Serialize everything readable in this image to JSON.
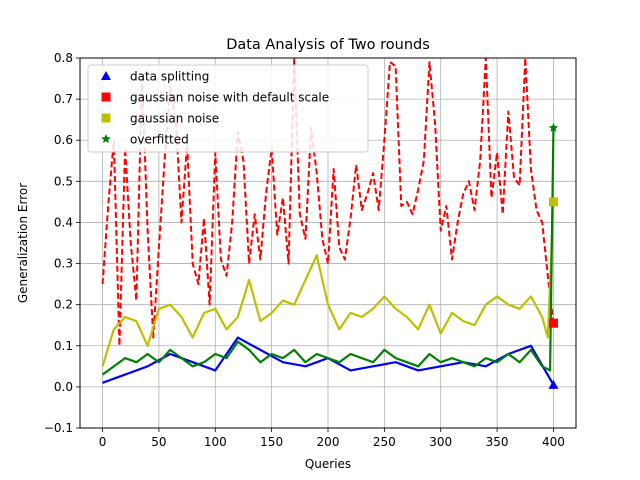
{
  "chart_data": {
    "type": "line",
    "title": "Data Analysis of Two rounds",
    "xlabel": "Queries",
    "ylabel": "Generalization Error",
    "xlim": [
      -20,
      420
    ],
    "ylim": [
      -0.1,
      0.8
    ],
    "xticks": [
      0,
      50,
      100,
      150,
      200,
      250,
      300,
      350,
      400
    ],
    "yticks": [
      -0.1,
      0.0,
      0.1,
      0.2,
      0.3,
      0.4,
      0.5,
      0.6,
      0.7,
      0.8
    ],
    "xtick_labels": [
      "0",
      "50",
      "100",
      "150",
      "200",
      "250",
      "300",
      "350",
      "400"
    ],
    "ytick_labels": [
      "−0.1",
      "0.0",
      "0.1",
      "0.2",
      "0.3",
      "0.4",
      "0.5",
      "0.6",
      "0.7",
      "0.8"
    ],
    "grid": true,
    "legend_position": "top-left",
    "series": [
      {
        "name": "data splitting",
        "color": "#0000ff",
        "line_style": "solid",
        "marker": "triangle",
        "x": [
          0,
          20,
          40,
          60,
          80,
          100,
          120,
          140,
          160,
          180,
          200,
          220,
          240,
          260,
          280,
          300,
          320,
          340,
          360,
          380,
          400
        ],
        "values": [
          0.01,
          0.03,
          0.05,
          0.08,
          0.06,
          0.04,
          0.12,
          0.09,
          0.06,
          0.05,
          0.07,
          0.04,
          0.05,
          0.06,
          0.04,
          0.05,
          0.06,
          0.05,
          0.08,
          0.1,
          0.005
        ],
        "marker_point": {
          "x": 400,
          "y": 0.005
        }
      },
      {
        "name": "gaussian noise with default scale",
        "color": "#ff0000",
        "line_style": "dashed",
        "marker": "square",
        "x": [
          0,
          5,
          10,
          15,
          20,
          25,
          30,
          35,
          40,
          45,
          50,
          55,
          60,
          65,
          70,
          75,
          80,
          85,
          90,
          95,
          100,
          105,
          110,
          115,
          120,
          125,
          130,
          135,
          140,
          145,
          150,
          155,
          160,
          165,
          170,
          175,
          180,
          185,
          190,
          195,
          200,
          205,
          210,
          215,
          220,
          225,
          230,
          235,
          240,
          245,
          250,
          255,
          260,
          265,
          270,
          275,
          280,
          285,
          290,
          295,
          300,
          305,
          310,
          315,
          320,
          325,
          330,
          335,
          340,
          345,
          350,
          355,
          360,
          365,
          370,
          375,
          380,
          385,
          390,
          395,
          400
        ],
        "values": [
          0.25,
          0.44,
          0.6,
          0.1,
          0.58,
          0.35,
          0.21,
          0.76,
          0.38,
          0.12,
          0.34,
          0.55,
          0.73,
          0.65,
          0.4,
          0.59,
          0.3,
          0.25,
          0.41,
          0.2,
          0.57,
          0.31,
          0.27,
          0.4,
          0.62,
          0.55,
          0.3,
          0.42,
          0.31,
          0.47,
          0.58,
          0.37,
          0.46,
          0.3,
          0.8,
          0.42,
          0.36,
          0.63,
          0.52,
          0.36,
          0.3,
          0.53,
          0.34,
          0.31,
          0.41,
          0.54,
          0.43,
          0.47,
          0.52,
          0.43,
          0.6,
          0.79,
          0.78,
          0.44,
          0.45,
          0.42,
          0.48,
          0.55,
          0.79,
          0.64,
          0.38,
          0.44,
          0.31,
          0.4,
          0.47,
          0.5,
          0.43,
          0.55,
          0.8,
          0.46,
          0.57,
          0.42,
          0.67,
          0.51,
          0.49,
          0.8,
          0.53,
          0.43,
          0.4,
          0.27,
          0.155
        ],
        "marker_point": {
          "x": 400,
          "y": 0.155
        }
      },
      {
        "name": "gaussian noise",
        "color": "#bfbf00",
        "line_style": "solid",
        "marker": "square",
        "x": [
          0,
          10,
          20,
          30,
          40,
          50,
          60,
          70,
          80,
          90,
          100,
          110,
          120,
          130,
          140,
          150,
          160,
          170,
          180,
          190,
          200,
          210,
          220,
          230,
          240,
          250,
          260,
          270,
          280,
          290,
          300,
          310,
          320,
          330,
          340,
          350,
          360,
          370,
          380,
          390,
          395,
          400
        ],
        "values": [
          0.05,
          0.14,
          0.17,
          0.16,
          0.1,
          0.19,
          0.2,
          0.17,
          0.12,
          0.18,
          0.19,
          0.14,
          0.17,
          0.26,
          0.16,
          0.18,
          0.21,
          0.2,
          0.26,
          0.32,
          0.2,
          0.14,
          0.18,
          0.17,
          0.19,
          0.22,
          0.19,
          0.17,
          0.14,
          0.2,
          0.13,
          0.18,
          0.16,
          0.15,
          0.2,
          0.22,
          0.2,
          0.19,
          0.22,
          0.17,
          0.12,
          0.45
        ],
        "marker_point": {
          "x": 400,
          "y": 0.45
        }
      },
      {
        "name": "overfitted",
        "color": "#008000",
        "line_style": "solid",
        "marker": "star",
        "x": [
          0,
          10,
          20,
          30,
          40,
          50,
          60,
          70,
          80,
          90,
          100,
          110,
          120,
          130,
          140,
          150,
          160,
          170,
          180,
          190,
          200,
          210,
          220,
          230,
          240,
          250,
          260,
          270,
          280,
          290,
          300,
          310,
          320,
          330,
          340,
          350,
          360,
          370,
          380,
          390,
          397,
          400
        ],
        "values": [
          0.03,
          0.05,
          0.07,
          0.06,
          0.08,
          0.06,
          0.09,
          0.07,
          0.05,
          0.06,
          0.08,
          0.07,
          0.11,
          0.09,
          0.06,
          0.08,
          0.07,
          0.09,
          0.06,
          0.08,
          0.07,
          0.06,
          0.08,
          0.07,
          0.06,
          0.09,
          0.07,
          0.06,
          0.05,
          0.08,
          0.06,
          0.07,
          0.06,
          0.05,
          0.07,
          0.06,
          0.08,
          0.06,
          0.09,
          0.05,
          0.04,
          0.63
        ],
        "marker_point": {
          "x": 400,
          "y": 0.63
        }
      }
    ]
  }
}
